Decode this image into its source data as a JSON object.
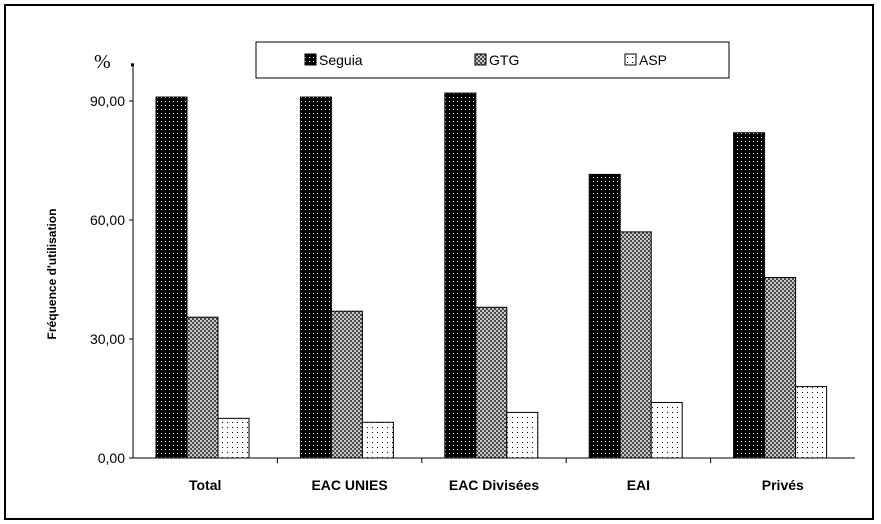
{
  "chart_data": {
    "type": "bar",
    "title": "",
    "unit_label": "%",
    "ylabel": "Fréquence d'utilisation",
    "xlabel": "",
    "ylim": [
      0,
      100
    ],
    "yticks": [
      0,
      30,
      60,
      90
    ],
    "ytick_labels": [
      "0,00",
      "30,00",
      "60,00",
      "90,00"
    ],
    "categories": [
      "Total",
      "EAC UNIES",
      "EAC Divisées",
      "EAI",
      "Privés"
    ],
    "series": [
      {
        "name": "Seguia",
        "values": [
          91,
          91,
          92,
          71.5,
          82
        ],
        "color": "#000000",
        "pattern": "dense-dots"
      },
      {
        "name": "GTG",
        "values": [
          35.5,
          37,
          38,
          57,
          45.5
        ],
        "color": "#808080",
        "pattern": "checker"
      },
      {
        "name": "ASP",
        "values": [
          10,
          9,
          11.5,
          14,
          18
        ],
        "color": "#ffffff",
        "pattern": "sparse-dots"
      }
    ],
    "legend_position": "top",
    "grid": false
  }
}
